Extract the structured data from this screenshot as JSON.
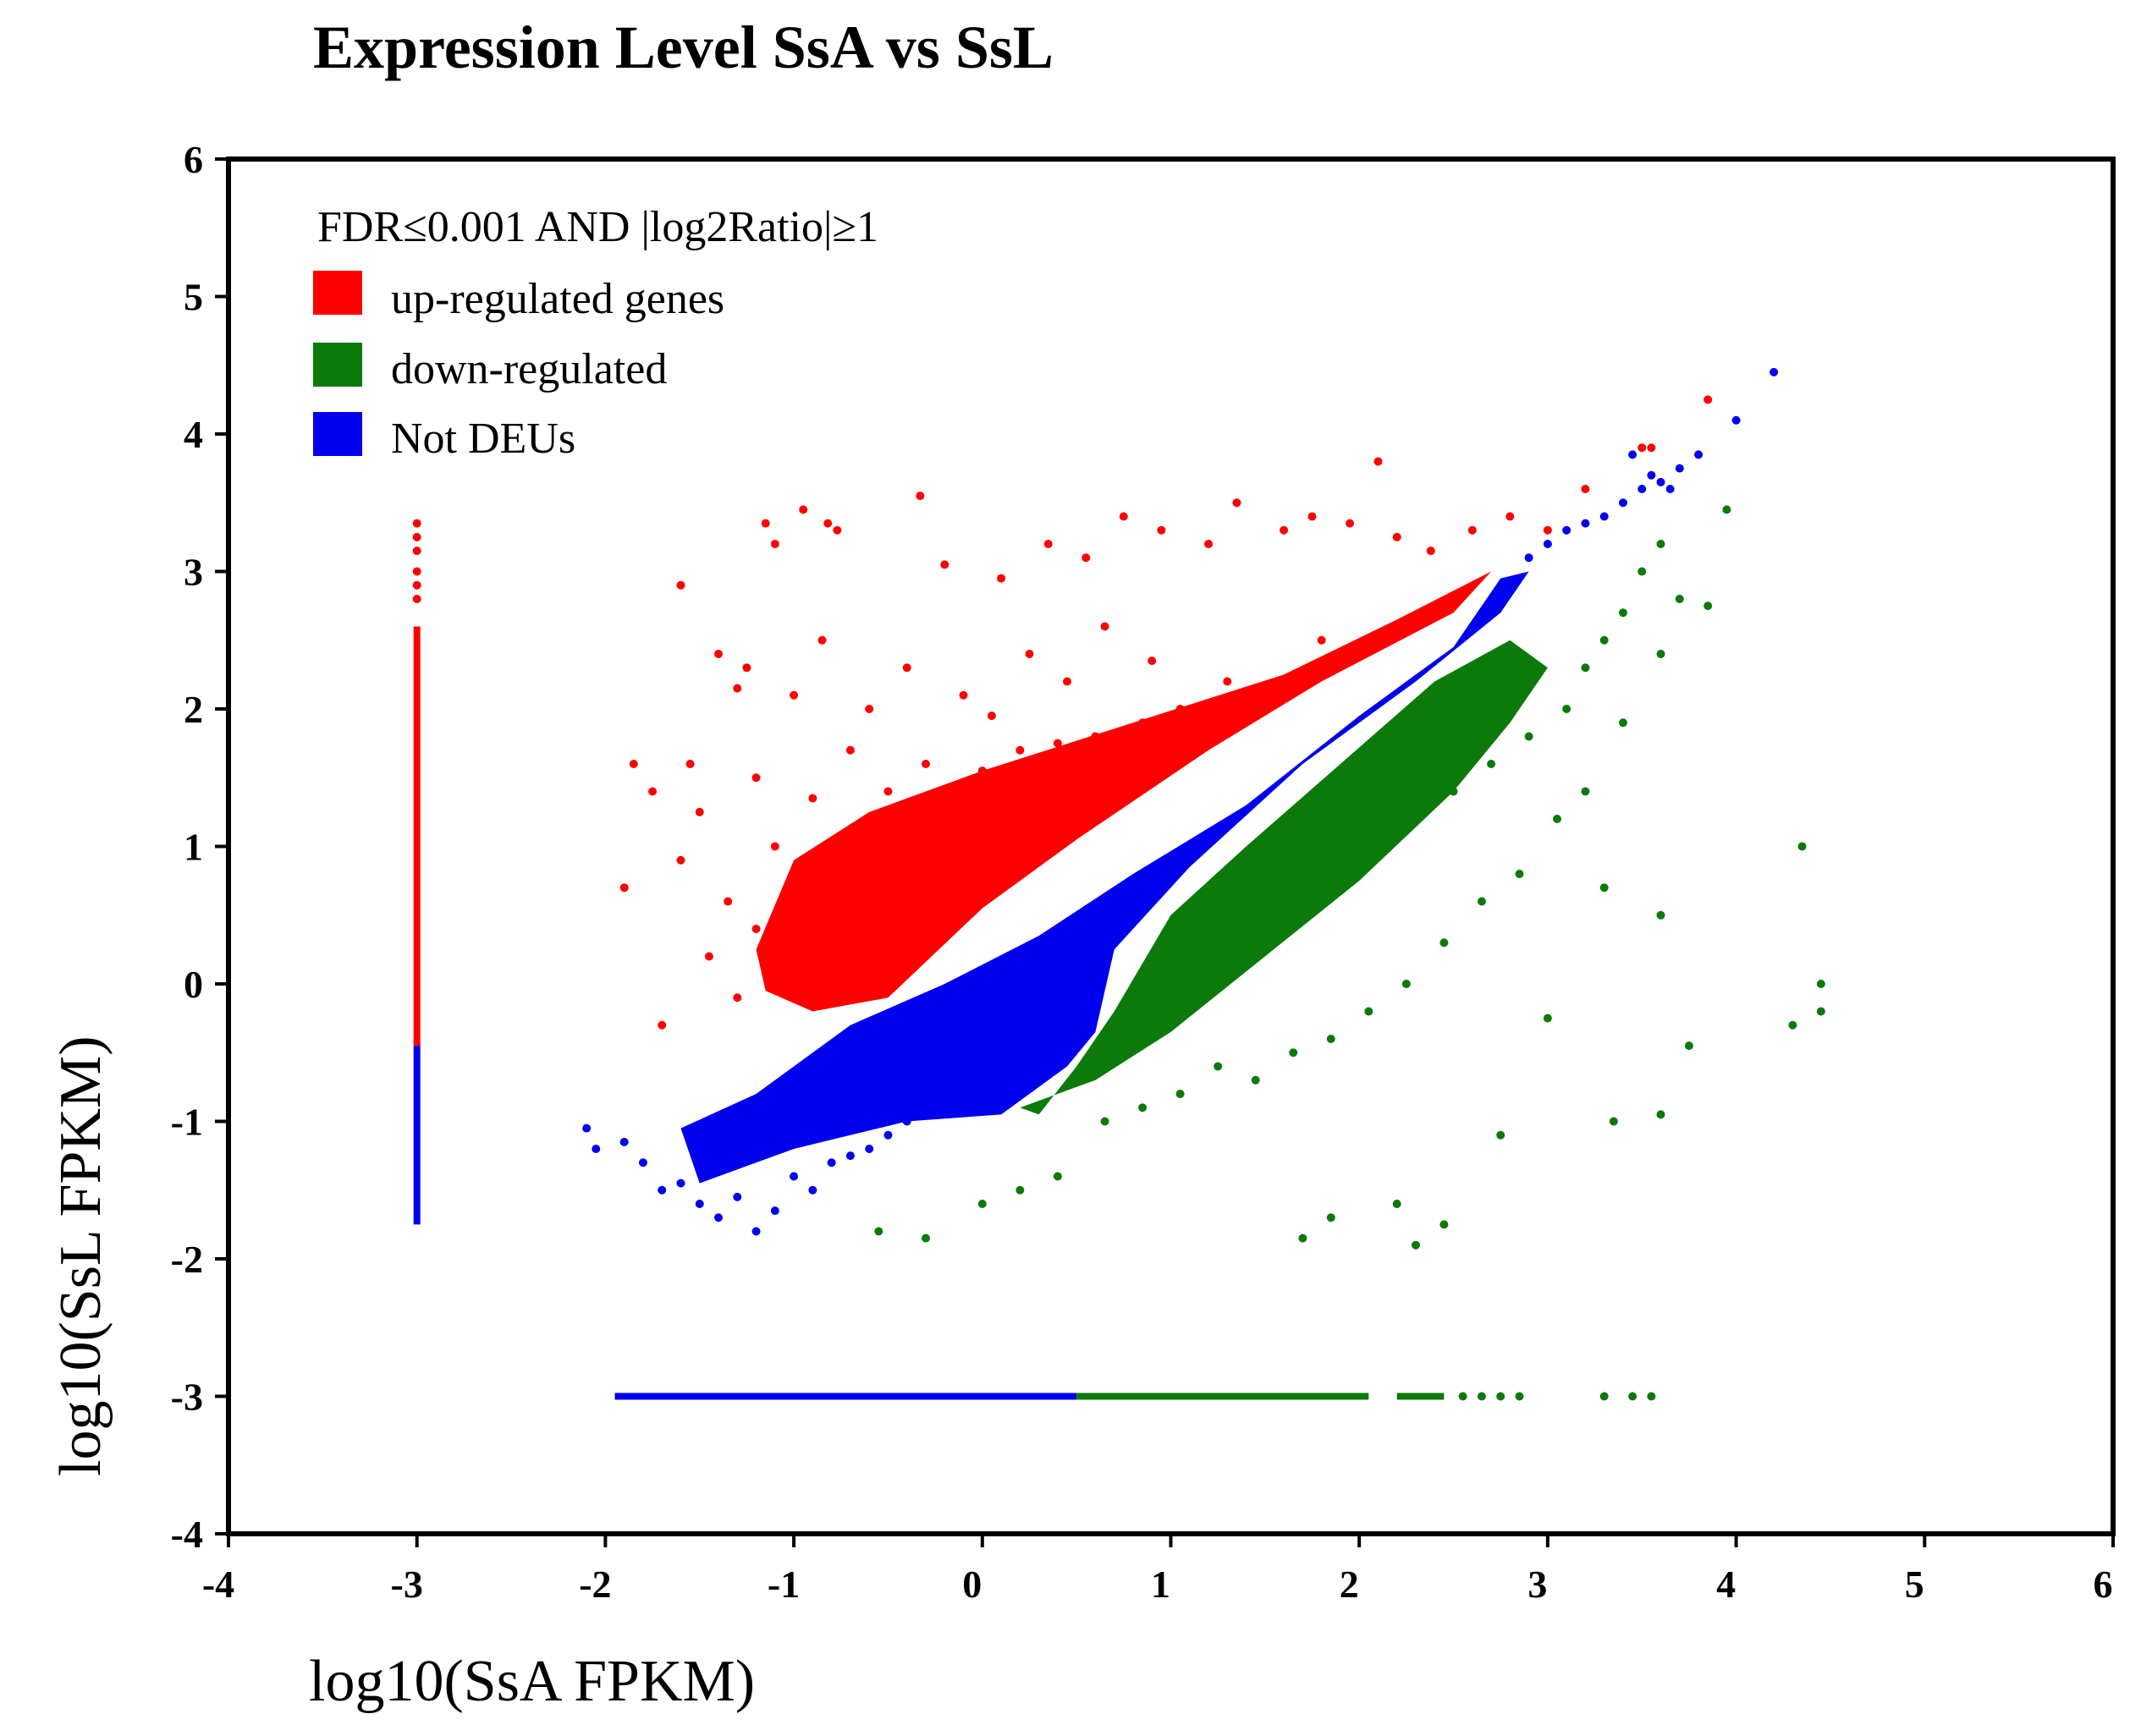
{
  "chart_data": {
    "type": "scatter",
    "title": "Expression Level SsA vs SsL",
    "xlabel": "log10(SsA FPKM)",
    "ylabel": "log10(SsL FPKM)",
    "xlim": [
      -4,
      6
    ],
    "ylim": [
      -4,
      6
    ],
    "x_ticks": [
      "-4",
      "-3",
      "-2",
      "-1",
      "0",
      "1",
      "2",
      "3",
      "4",
      "5",
      "6"
    ],
    "y_ticks": [
      "-4",
      "-3",
      "-2",
      "-1",
      "0",
      "1",
      "2",
      "3",
      "4",
      "5",
      "6"
    ],
    "grid": false,
    "legend": {
      "placement": "top-left",
      "title": "FDR≤0.001 AND |log2Ratio|≥1",
      "entries": [
        {
          "label": "up-regulated genes",
          "color": "#ff0000"
        },
        {
          "label": "down-regulated",
          "color": "#0b7a0b"
        },
        {
          "label": "Not DEUs",
          "color": "#0000ee"
        }
      ]
    },
    "colors": {
      "up": "#ff0000",
      "down": "#0b7a0b",
      "not": "#0000ee"
    },
    "series": [
      {
        "name": "up-regulated genes",
        "color": "#ff0000",
        "density_note": "dense band above diagonal, y > x + ~0.3, from x≈-1.2 to x≈2.7",
        "x": [
          -1.15,
          -1.1,
          -0.95,
          -0.82,
          -0.77,
          -0.33,
          -0.2,
          0.1,
          0.35,
          0.55,
          0.75,
          0.95,
          1.2,
          1.35,
          1.6,
          1.75,
          1.95,
          2.1,
          2.2,
          2.38,
          2.6,
          2.8,
          3.0,
          3.2,
          3.5,
          3.55,
          3.85,
          -1.6,
          -1.55,
          -1.4,
          -1.3,
          -1.25,
          -1.0,
          -0.85,
          -0.6,
          -0.4,
          -0.1,
          0.05,
          0.25,
          0.45,
          0.65,
          0.9,
          1.05,
          1.3,
          1.5,
          1.8,
          2.05,
          -1.85,
          -1.75,
          -1.5,
          -1.2,
          -0.9,
          -0.7,
          -0.5,
          -0.3,
          0.0,
          0.2,
          0.4,
          0.6,
          0.85,
          1.1,
          1.4,
          1.7,
          -1.9,
          -1.6,
          -1.35,
          -1.1,
          -0.8,
          -0.55,
          -0.25,
          -1.45,
          -1.2,
          -0.95,
          -0.7,
          -0.45,
          -0.2,
          0.15,
          0.5,
          -1.7,
          -1.3,
          -1.0
        ],
        "y": [
          3.35,
          3.2,
          3.45,
          3.35,
          3.3,
          3.55,
          3.05,
          2.95,
          3.2,
          3.1,
          3.4,
          3.3,
          3.2,
          3.5,
          3.3,
          3.4,
          3.35,
          3.8,
          3.25,
          3.15,
          3.3,
          3.4,
          3.3,
          3.6,
          3.9,
          3.9,
          4.25,
          2.9,
          1.6,
          2.4,
          2.15,
          2.3,
          2.1,
          2.5,
          2.0,
          2.3,
          2.1,
          1.95,
          2.4,
          2.2,
          2.6,
          2.35,
          2.0,
          2.2,
          2.1,
          2.5,
          2.45,
          1.6,
          1.4,
          1.25,
          1.5,
          1.35,
          1.7,
          1.4,
          1.6,
          1.55,
          1.7,
          1.75,
          1.8,
          1.9,
          1.85,
          2.05,
          2.2,
          0.7,
          0.9,
          0.6,
          1.0,
          0.9,
          1.1,
          1.0,
          0.2,
          0.4,
          0.55,
          0.7,
          0.8,
          0.9,
          1.05,
          1.3,
          -0.3,
          -0.1,
          0.2
        ]
      },
      {
        "name": "down-regulated",
        "color": "#0b7a0b",
        "density_note": "dense band below diagonal, y < x - ~0.3, from x≈0.2 to x≈3",
        "x": [
          0.9,
          1.1,
          1.3,
          1.5,
          1.7,
          1.9,
          2.1,
          2.3,
          2.5,
          2.7,
          2.9,
          3.1,
          3.2,
          3.3,
          3.4,
          3.5,
          3.6,
          3.7,
          3.95,
          3.85,
          3.6,
          3.4,
          3.2,
          3.05,
          2.85,
          2.65,
          2.45,
          2.25,
          2.05,
          1.85,
          1.65,
          1.45,
          1.25,
          1.05,
          0.85,
          0.65,
          4.35,
          4.45,
          3.3,
          3.6,
          3.75,
          4.3,
          4.45,
          -0.55,
          -0.3,
          0.0,
          0.2,
          0.4,
          1.7,
          1.85,
          2.2,
          2.3,
          2.45,
          2.75,
          3.0,
          3.35,
          3.6
        ],
        "y": [
          -0.2,
          0.0,
          0.2,
          0.35,
          0.6,
          0.8,
          1.0,
          1.2,
          1.4,
          1.6,
          1.8,
          2.0,
          2.3,
          2.5,
          2.7,
          3.0,
          3.2,
          2.8,
          3.45,
          2.75,
          2.4,
          1.9,
          1.4,
          1.2,
          0.8,
          0.6,
          0.3,
          0.0,
          -0.2,
          -0.4,
          -0.5,
          -0.7,
          -0.6,
          -0.8,
          -0.9,
          -1.0,
          1.0,
          0.0,
          0.7,
          0.5,
          -0.45,
          -0.3,
          -0.2,
          -1.8,
          -1.85,
          -1.6,
          -1.5,
          -1.4,
          -1.85,
          -1.7,
          -1.6,
          -1.9,
          -1.75,
          -1.1,
          -0.25,
          -1.0,
          -0.95
        ]
      },
      {
        "name": "Not DEUs",
        "color": "#0000ee",
        "density_note": "dense band along diagonal y≈x from x≈-2 to x≈2.8, sparse to x≈4.2",
        "x": [
          -2.1,
          -2.05,
          -1.9,
          -1.8,
          -1.7,
          -1.6,
          -1.5,
          -1.4,
          -1.3,
          -1.2,
          -1.1,
          -1.0,
          -0.9,
          -0.8,
          -0.7,
          -0.6,
          -0.5,
          -0.4,
          -0.3,
          2.9,
          3.0,
          3.1,
          3.2,
          3.3,
          3.4,
          3.5,
          3.6,
          3.7,
          3.8,
          4.0,
          4.2,
          3.45,
          3.55,
          3.65
        ],
        "y": [
          -1.05,
          -1.2,
          -1.15,
          -1.3,
          -1.5,
          -1.45,
          -1.6,
          -1.7,
          -1.55,
          -1.8,
          -1.65,
          -1.4,
          -1.5,
          -1.3,
          -1.25,
          -1.2,
          -1.1,
          -1.0,
          -0.95,
          3.1,
          3.2,
          3.3,
          3.35,
          3.4,
          3.5,
          3.6,
          3.65,
          3.75,
          3.85,
          4.1,
          4.45,
          3.85,
          3.7,
          3.6
        ]
      }
    ],
    "rug_y": {
      "x": -3,
      "segments": [
        {
          "from": 2.6,
          "to": -0.45,
          "color": "#ff0000"
        },
        {
          "from": -0.45,
          "to": -1.75,
          "color": "#0000ee"
        }
      ],
      "sparse_points_y": [
        3.35,
        3.25,
        3.15,
        3.0,
        2.9,
        2.8
      ]
    },
    "rug_x": {
      "y": -3,
      "segments": [
        {
          "from": -1.95,
          "to": 0.5,
          "color": "#0000ee"
        },
        {
          "from": 0.5,
          "to": 2.05,
          "color": "#0b7a0b"
        },
        {
          "from": 2.2,
          "to": 2.45,
          "color": "#0b7a0b"
        }
      ],
      "sparse_points_x": [
        2.55,
        2.65,
        2.75,
        2.85,
        3.3,
        3.45,
        3.55
      ]
    }
  }
}
